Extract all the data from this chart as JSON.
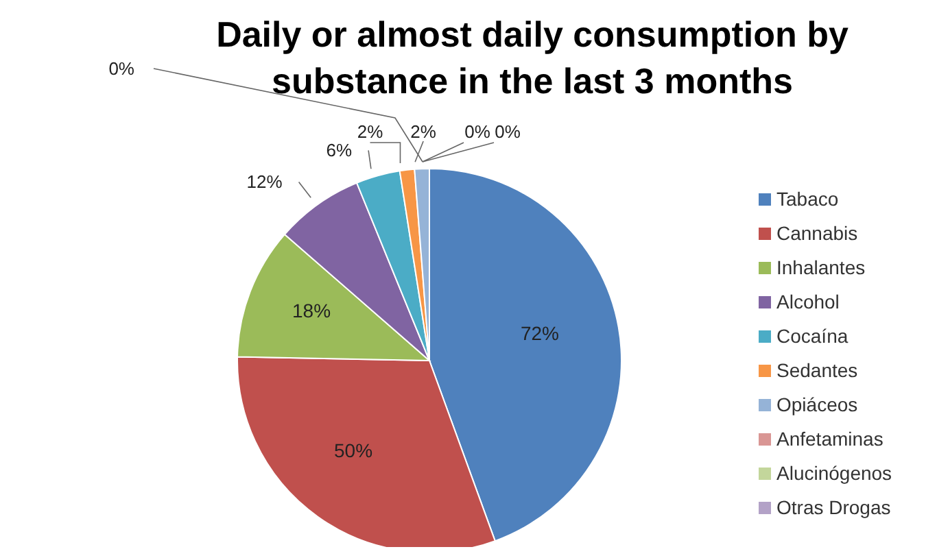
{
  "chart_data": {
    "type": "pie",
    "title": "Daily or almost daily consumption by substance in the last 3 months",
    "categories": [
      "Tabaco",
      "Cannabis",
      "Inhalantes",
      "Alcohol",
      "Cocaína",
      "Sedantes",
      "Opiáceos",
      "Anfetaminas",
      "Alucinógenos",
      "Otras Drogas"
    ],
    "values": [
      72,
      50,
      18,
      12,
      6,
      2,
      2,
      0,
      0,
      0
    ],
    "value_labels": [
      "72%",
      "50%",
      "18%",
      "12%",
      "6%",
      "2%",
      "2%",
      "0%",
      "0%",
      "0%"
    ],
    "colors": [
      "#4f81bd",
      "#c0504d",
      "#9bbb59",
      "#8064a2",
      "#4bacc6",
      "#f79646",
      "#95b3d7",
      "#d99694",
      "#c3d69b",
      "#b3a2c7"
    ],
    "legend": "right"
  }
}
